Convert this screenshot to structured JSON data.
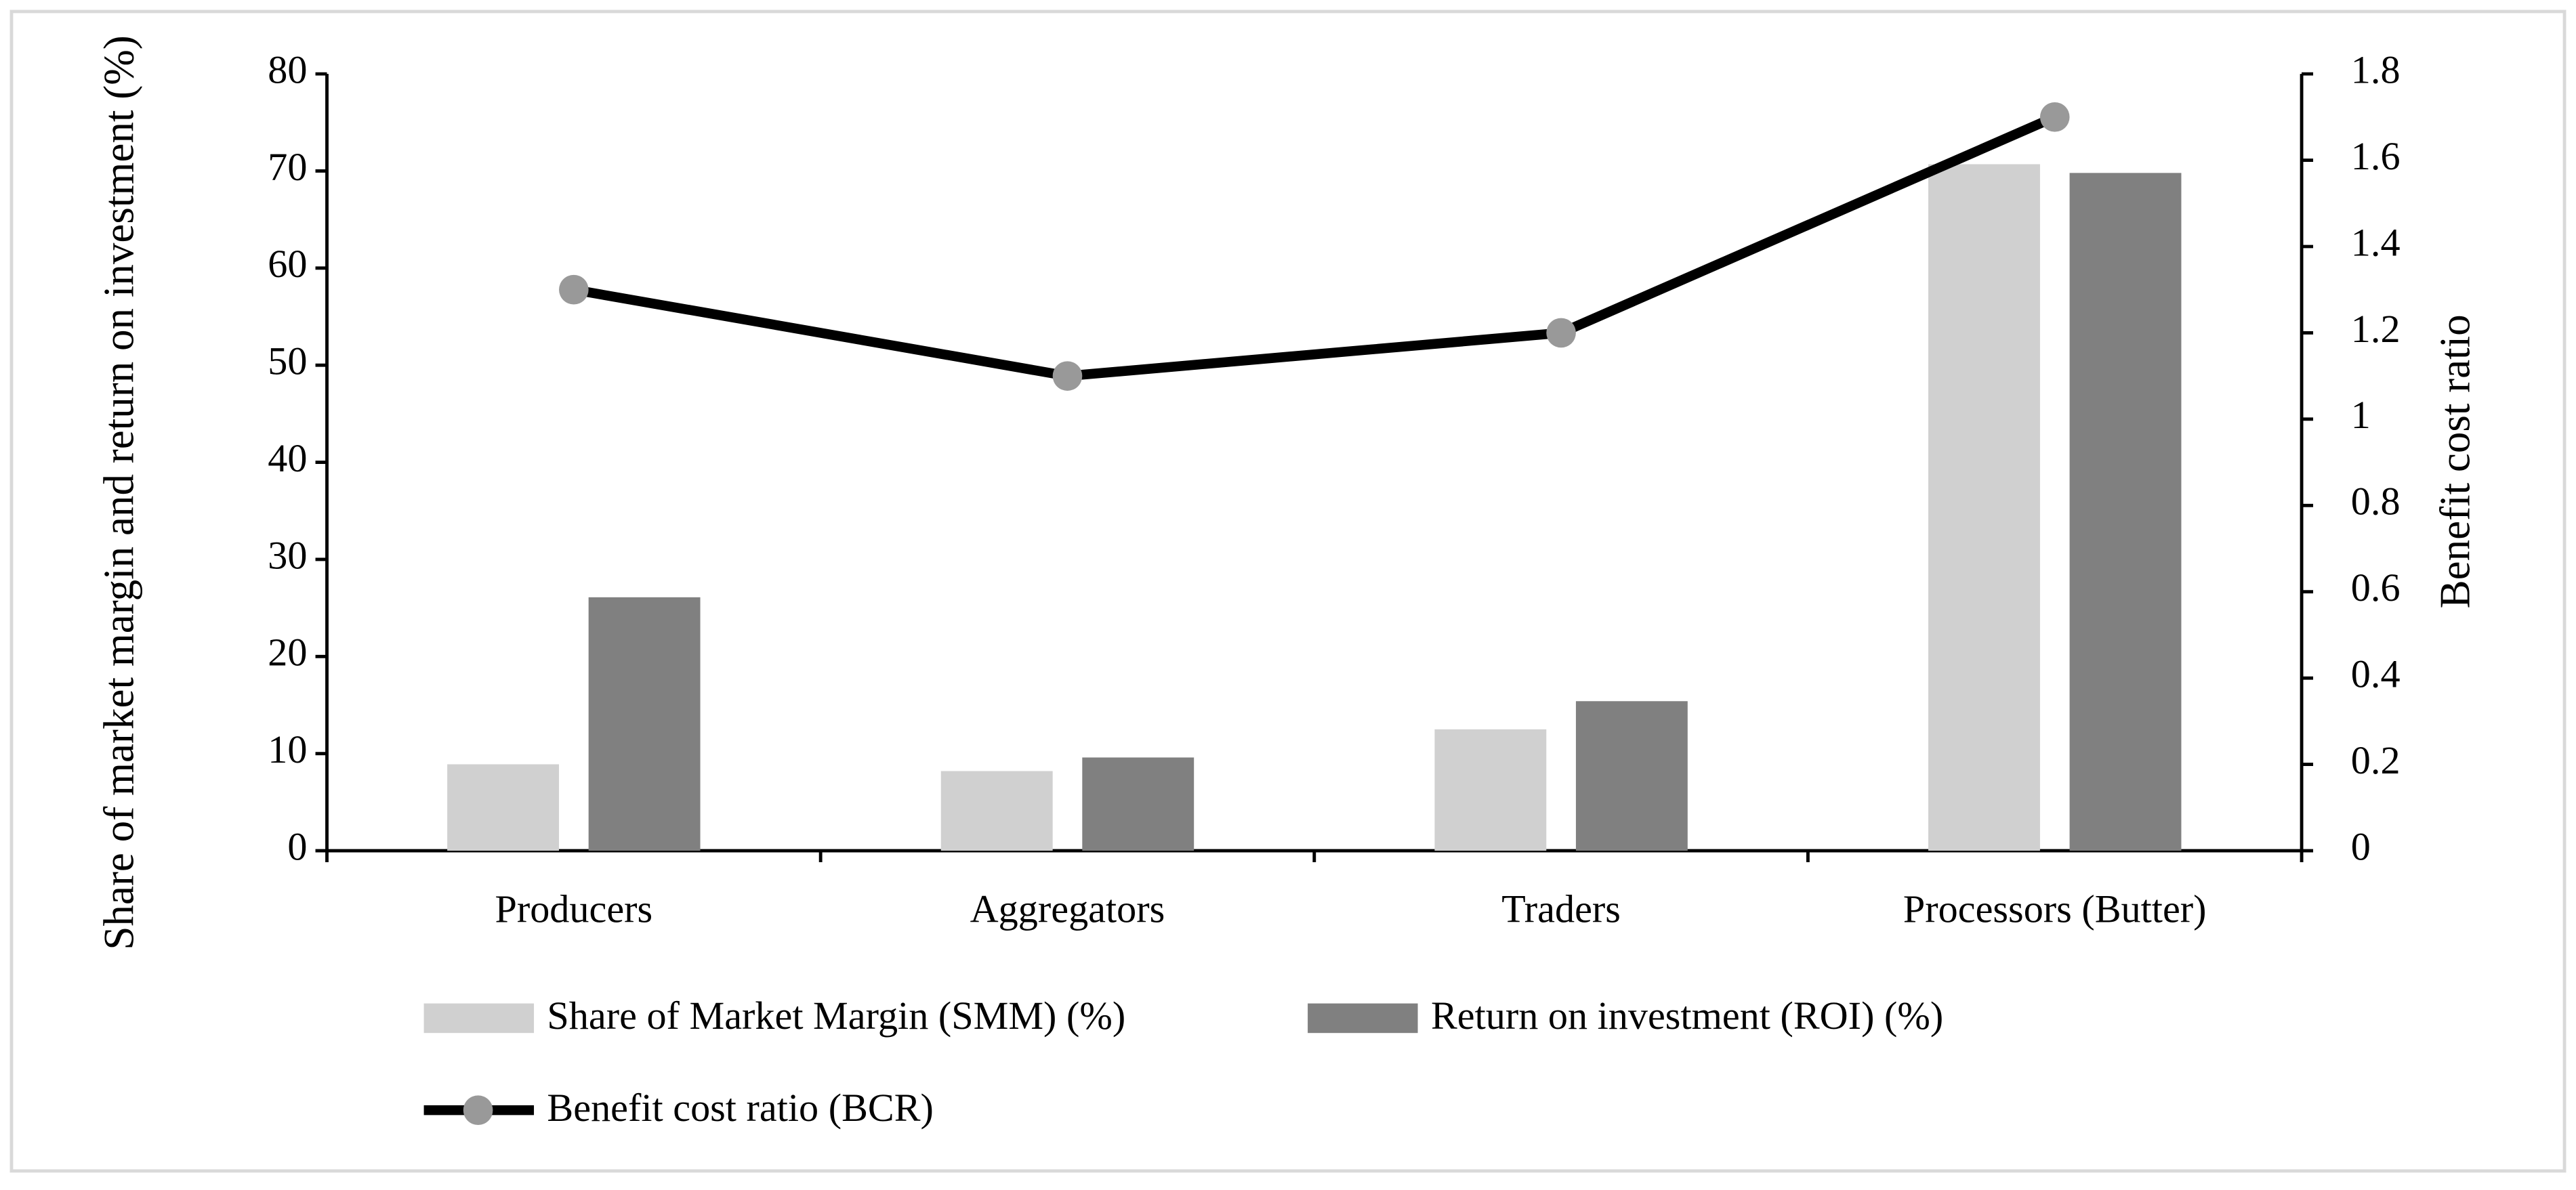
{
  "chart_data": {
    "type": "bar",
    "categories": [
      "Producers",
      "Aggregators",
      "Traders",
      "Processors (Butter)"
    ],
    "y_label": "Share of market margin and return on investment (%)",
    "y2_label": "Benefit cost ratio",
    "ylim": [
      0,
      80
    ],
    "yticks": [
      0,
      10,
      20,
      30,
      40,
      50,
      60,
      70,
      80
    ],
    "y2lim": [
      0,
      1.8
    ],
    "y2ticks": [
      0,
      0.2,
      0.4,
      0.6,
      0.8,
      1,
      1.2,
      1.4,
      1.6,
      1.8
    ],
    "series": [
      {
        "name": "Share of Market Margin (SMM) (%)",
        "type": "bar",
        "color": "#d0d0d0",
        "values": [
          8.9,
          8.2,
          12.5,
          70.7
        ]
      },
      {
        "name": "Return on investment (ROI) (%)",
        "type": "bar",
        "color": "#808080",
        "values": [
          26.1,
          9.6,
          15.4,
          69.8
        ]
      },
      {
        "name": "Benefit cost ratio (BCR)",
        "type": "line",
        "axis": "y2",
        "color": "#000000",
        "marker_color": "#999999",
        "values": [
          1.3,
          1.1,
          1.2,
          1.7
        ]
      }
    ]
  }
}
